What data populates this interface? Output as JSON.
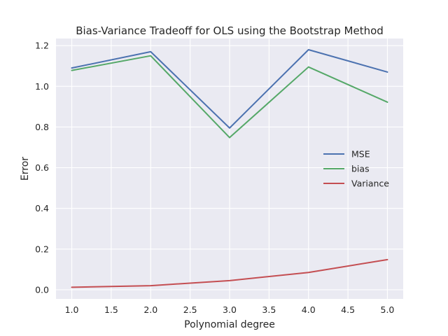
{
  "chart_data": {
    "type": "line",
    "title": "Bias-Variance Tradeoff for OLS using the Bootstrap Method",
    "xlabel": "Polynomial degree",
    "ylabel": "Error",
    "x": [
      1.0,
      2.0,
      3.0,
      4.0,
      5.0
    ],
    "xlim": [
      0.8,
      5.2
    ],
    "ylim": [
      -0.045,
      1.235
    ],
    "xticks": [
      1.0,
      1.5,
      2.0,
      2.5,
      3.0,
      3.5,
      4.0,
      4.5,
      5.0
    ],
    "xtick_labels": [
      "1.0",
      "1.5",
      "2.0",
      "2.5",
      "3.0",
      "3.5",
      "4.0",
      "4.5",
      "5.0"
    ],
    "yticks": [
      0.0,
      0.2,
      0.4,
      0.6,
      0.8,
      1.0,
      1.2
    ],
    "ytick_labels": [
      "0.0",
      "0.2",
      "0.4",
      "0.6",
      "0.8",
      "1.0",
      "1.2"
    ],
    "grid": true,
    "legend_position": "center-right",
    "background": "#eaeaf2",
    "series": [
      {
        "name": "MSE",
        "color": "#4c72b0",
        "values": [
          1.09,
          1.17,
          0.795,
          1.18,
          1.07
        ]
      },
      {
        "name": "bias",
        "color": "#55a868",
        "values": [
          1.078,
          1.15,
          0.748,
          1.095,
          0.922
        ]
      },
      {
        "name": "Variance",
        "color": "#c44e52",
        "values": [
          0.012,
          0.02,
          0.045,
          0.085,
          0.148
        ]
      }
    ]
  }
}
